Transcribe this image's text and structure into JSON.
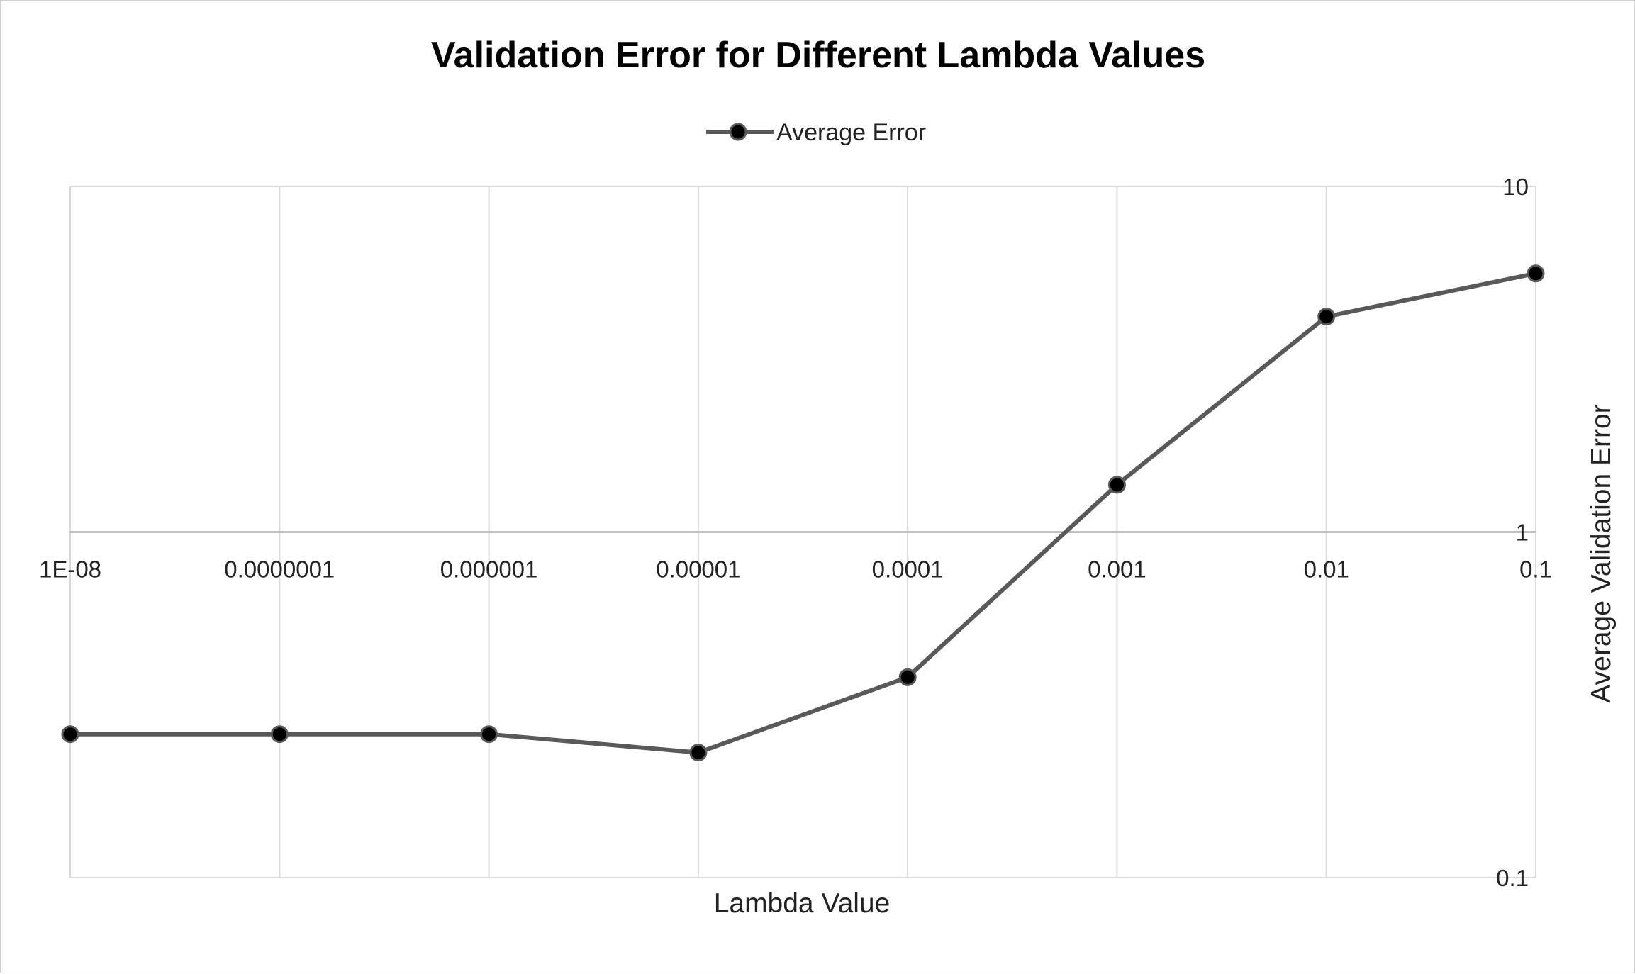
{
  "chart_data": {
    "type": "line",
    "title": "Validation Error for Different Lambda Values",
    "xlabel": "Lambda Value",
    "ylabel": "Average Validation Error",
    "x_scale": "log",
    "y_scale": "log",
    "y_axis_position": "right",
    "x_axis_crosses_y_at": 1,
    "legend_position": "top-center",
    "grid": true,
    "categories": [
      "1E-08",
      "0.0000001",
      "0.000001",
      "0.00001",
      "0.0001",
      "0.001",
      "0.01",
      "0.1"
    ],
    "x": [
      1e-08,
      1e-07,
      1e-06,
      1e-05,
      0.0001,
      0.001,
      0.01,
      0.1
    ],
    "y_ticks": [
      "10",
      "1",
      "0.1"
    ],
    "ylim": [
      0.1,
      10
    ],
    "series": [
      {
        "name": "Average Error",
        "values": [
          0.26,
          0.26,
          0.26,
          0.23,
          0.38,
          1.37,
          4.2,
          5.6
        ],
        "color": "#595959",
        "marker_color": "#000000"
      }
    ]
  }
}
